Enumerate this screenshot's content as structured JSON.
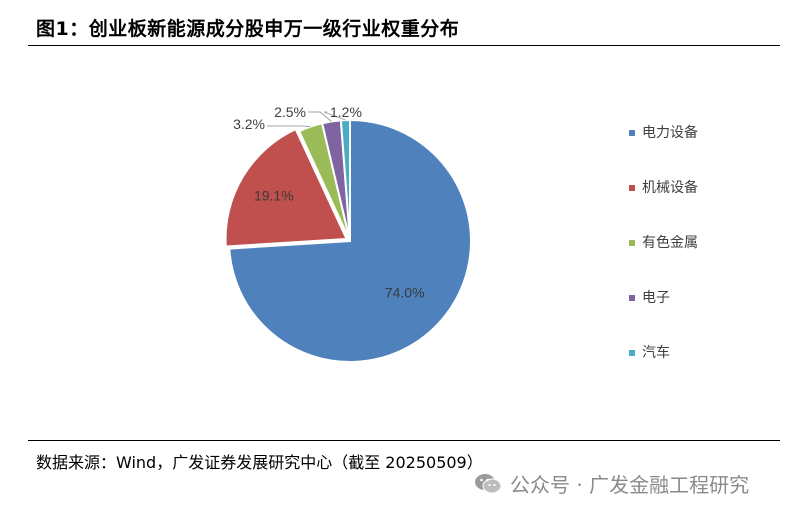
{
  "title": "图1：创业板新能源成分股申万一级行业权重分布",
  "source": "数据来源：Wind，广发证券发展研究中心（截至 20250509）",
  "watermark": {
    "text": "公众号 · 广发金融工程研究",
    "icon": "wechat-icon"
  },
  "chart_data": {
    "type": "pie",
    "title": "",
    "legend_position": "right",
    "start_angle_deg": 0,
    "direction": "clockwise",
    "slices": [
      {
        "label": "电力设备",
        "value": 74.0,
        "display": "74.0%",
        "color": "#4F81BD"
      },
      {
        "label": "机械设备",
        "value": 19.1,
        "display": "19.1%",
        "color": "#C0504D"
      },
      {
        "label": "有色金属",
        "value": 3.2,
        "display": "3.2%",
        "color": "#9BBB59"
      },
      {
        "label": "电子",
        "value": 2.5,
        "display": "2.5%",
        "color": "#8064A2"
      },
      {
        "label": "汽车",
        "value": 1.2,
        "display": "1.2%",
        "color": "#4BACC6"
      }
    ]
  }
}
